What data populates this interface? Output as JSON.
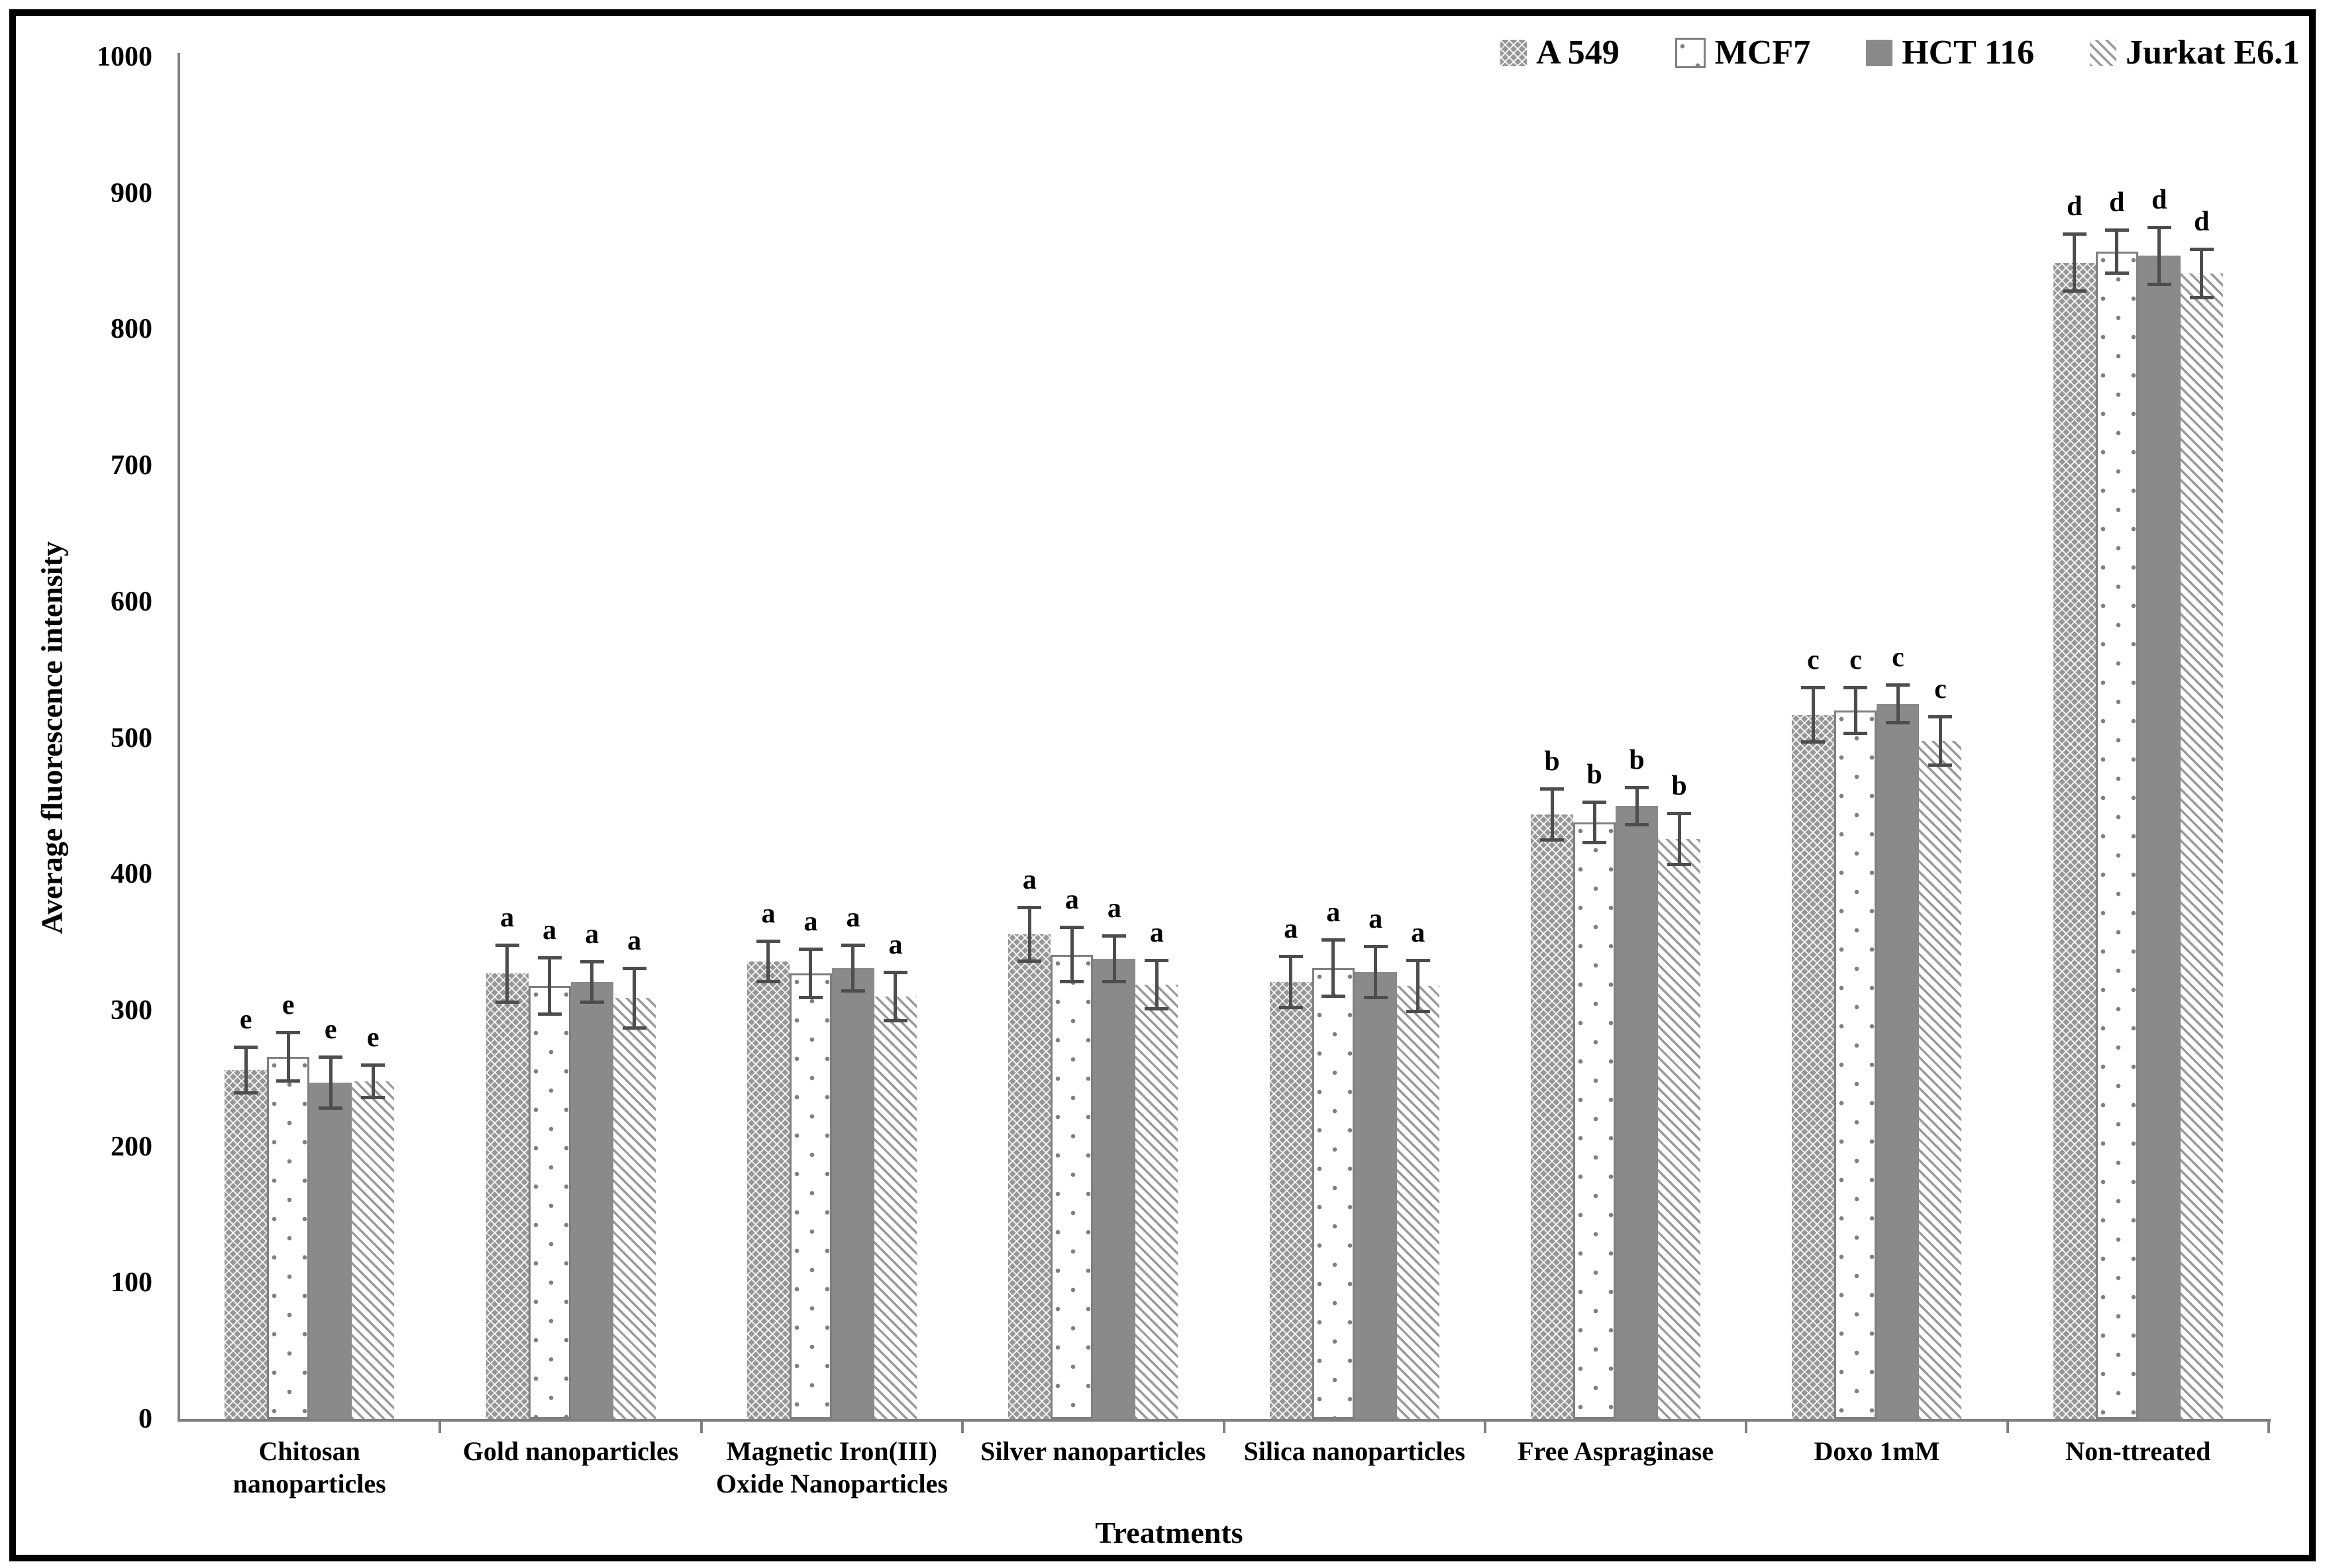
{
  "chart_data": {
    "type": "bar",
    "title": "",
    "xlabel": "Treatments",
    "ylabel": "Average fluorescence intensity",
    "ylim": [
      0,
      1000
    ],
    "ytick_step": 100,
    "grid": false,
    "legend_position": "top-right",
    "categories": [
      "Chitosan\nnanoparticles",
      "Gold nanoparticles",
      "Magnetic Iron(III)\nOxide Nanoparticles",
      "Silver nanoparticles",
      "Silica nanoparticles",
      "Free Aspraginase",
      "Doxo 1mM",
      "Non-ttreated"
    ],
    "sig_letters": [
      "e",
      "a",
      "a",
      "a",
      "a",
      "b",
      "c",
      "d"
    ],
    "series": [
      {
        "name": "A 549",
        "pattern": "crosshatch",
        "values": [
          256,
          327,
          336,
          356,
          321,
          444,
          517,
          849
        ],
        "errors": [
          17,
          21,
          15,
          20,
          19,
          19,
          20,
          21
        ]
      },
      {
        "name": "MCF7",
        "pattern": "dots",
        "values": [
          266,
          318,
          327,
          341,
          331,
          438,
          520,
          857
        ],
        "errors": [
          18,
          21,
          18,
          20,
          21,
          15,
          17,
          16
        ]
      },
      {
        "name": "HCT 116",
        "pattern": "solid",
        "values": [
          247,
          321,
          331,
          338,
          328,
          450,
          525,
          854
        ],
        "errors": [
          19,
          15,
          17,
          17,
          19,
          14,
          14,
          21
        ]
      },
      {
        "name": "Jurkat E6.1",
        "pattern": "diagonal",
        "values": [
          248,
          309,
          310,
          319,
          318,
          426,
          498,
          841
        ],
        "errors": [
          12,
          22,
          18,
          18,
          19,
          19,
          18,
          18
        ]
      }
    ],
    "colors": {
      "bar_gray": "#8a8a8a",
      "axis_gray": "#808080",
      "error_bar": "#4d4d4d",
      "text": "#000000",
      "frame": "#000000"
    }
  }
}
